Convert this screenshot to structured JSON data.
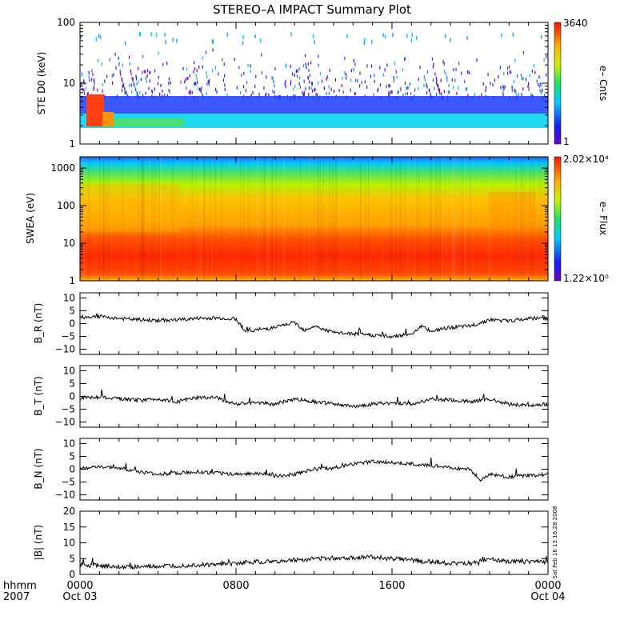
{
  "title": "STEREO–A IMPACT Summary Plot",
  "timestamp": "Sat Feb 16 13:16:28 2008",
  "x_axis": {
    "hhmm_label": "hhmm",
    "year_label": "2007",
    "ticks": [
      {
        "hour": 0,
        "time": "0000",
        "date": "Oct 03"
      },
      {
        "hour": 8,
        "time": "0800",
        "date": ""
      },
      {
        "hour": 16,
        "time": "1600",
        "date": ""
      },
      {
        "hour": 24,
        "time": "0000",
        "date": "Oct 04"
      }
    ],
    "range_hours": [
      0,
      24
    ]
  },
  "chart_data": [
    {
      "type": "heatmap",
      "ylabel": "STE D0 (keV)",
      "y_scale": "log",
      "ylim": [
        1,
        100
      ],
      "y_ticks": [
        "1",
        "10",
        "100"
      ],
      "colorbar": {
        "label": "e– Cnts",
        "max": "3640",
        "min": "1"
      },
      "note": "Intense counts at ~2-6 keV at day start, continuous band ~2-5 keV, sparse speckle up to 100 keV"
    },
    {
      "type": "heatmap",
      "ylabel": "SWEA (eV)",
      "y_scale": "log",
      "ylim": [
        1,
        2000
      ],
      "y_ticks": [
        "1",
        "10",
        "100",
        "1000"
      ],
      "colorbar": {
        "label": "e– Flux",
        "max": "2.02×10⁴",
        "min": "1.22×10⁰"
      }
    },
    {
      "type": "line",
      "ylabel": "B_R (nT)",
      "ylim": [
        -12,
        12
      ],
      "y_ticks": [
        "10",
        "5",
        "0",
        "−5",
        "−10"
      ],
      "x": [
        0,
        1,
        2,
        3,
        4,
        5,
        6,
        7,
        8,
        8.5,
        9,
        10,
        11,
        11.5,
        12,
        13,
        14,
        15,
        16,
        17,
        17.5,
        18,
        19,
        20,
        21,
        22,
        23,
        24
      ],
      "values": [
        2.5,
        2.8,
        2.0,
        1.5,
        1.2,
        1.5,
        2.0,
        2.2,
        1.8,
        -3.0,
        -2.5,
        -1.5,
        0.5,
        -2.5,
        -1.0,
        -3.5,
        -4.0,
        -4.5,
        -5.0,
        -4.0,
        -1.0,
        -3.0,
        -1.5,
        -1.0,
        1.5,
        1.0,
        2.0,
        2.0
      ]
    },
    {
      "type": "line",
      "ylabel": "B_T (nT)",
      "ylim": [
        -12,
        12
      ],
      "y_ticks": [
        "10",
        "5",
        "0",
        "−5",
        "−10"
      ],
      "x": [
        0,
        1,
        2,
        3,
        4,
        5,
        6,
        7,
        8,
        9,
        10,
        11,
        12,
        13,
        14,
        15,
        16,
        17,
        18,
        19,
        20,
        21,
        22,
        23,
        24
      ],
      "values": [
        -0.5,
        -0.3,
        -1.0,
        -1.5,
        -1.0,
        -2.0,
        -0.5,
        -0.5,
        -3.0,
        -2.5,
        -3.0,
        -1.0,
        -2.0,
        -3.0,
        -4.0,
        -3.0,
        -2.5,
        -3.0,
        -1.0,
        -1.5,
        -2.0,
        -1.0,
        -3.0,
        -3.5,
        -3.0
      ]
    },
    {
      "type": "line",
      "ylabel": "B_N (nT)",
      "ylim": [
        -12,
        12
      ],
      "y_ticks": [
        "10",
        "5",
        "0",
        "−5",
        "−10"
      ],
      "x": [
        0,
        1,
        2,
        3,
        4,
        5,
        6,
        7,
        8,
        9,
        10,
        11,
        12,
        13,
        14,
        15,
        16,
        17,
        18,
        19,
        20,
        20.5,
        21,
        22,
        23,
        24
      ],
      "values": [
        0.5,
        0.8,
        0.5,
        -1.0,
        -2.0,
        -1.5,
        -1.0,
        -1.5,
        -2.0,
        -1.5,
        -2.5,
        -2.0,
        0.0,
        0.5,
        2.0,
        3.0,
        2.5,
        2.0,
        1.5,
        0.5,
        0.0,
        -4.5,
        -2.0,
        -3.0,
        -2.5,
        -2.0
      ]
    },
    {
      "type": "line",
      "ylabel": "|B| (nT)",
      "ylim": [
        0,
        20
      ],
      "y_ticks": [
        "20",
        "15",
        "10",
        "5",
        "0"
      ],
      "x": [
        0,
        1,
        2,
        3,
        4,
        5,
        6,
        7,
        8,
        9,
        10,
        11,
        12,
        13,
        14,
        15,
        16,
        17,
        18,
        19,
        20,
        21,
        22,
        23,
        24
      ],
      "values": [
        3.0,
        2.8,
        2.5,
        2.3,
        2.5,
        2.7,
        3.0,
        3.0,
        3.5,
        4.0,
        4.0,
        4.5,
        5.0,
        5.2,
        5.3,
        5.5,
        5.0,
        4.5,
        4.0,
        3.5,
        3.5,
        5.0,
        4.0,
        4.0,
        4.0
      ]
    }
  ]
}
